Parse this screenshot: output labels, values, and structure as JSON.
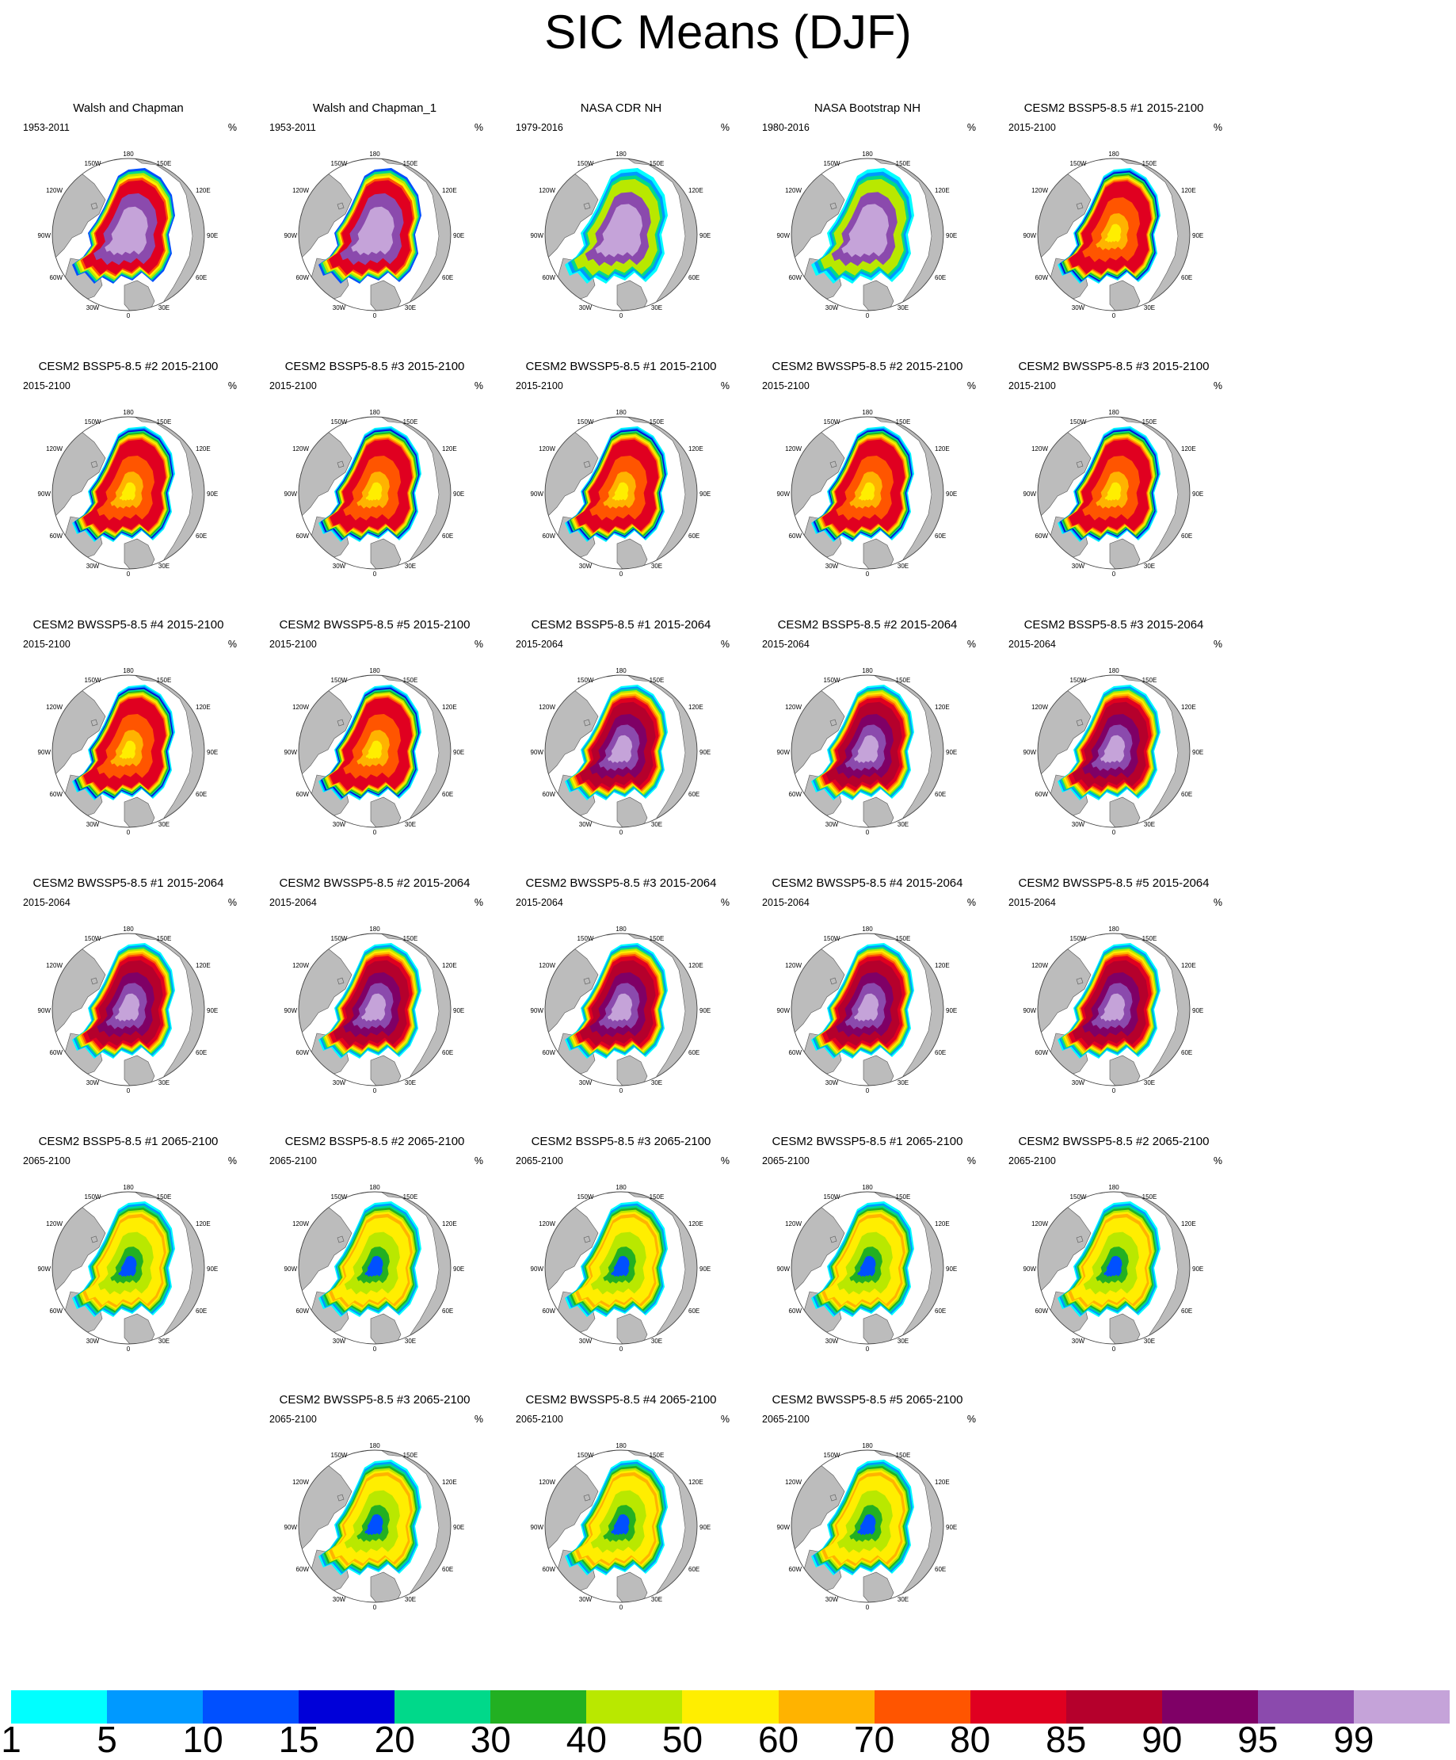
{
  "title": "SIC Means (DJF)",
  "unit_label": "%",
  "longitude_labels": [
    "180",
    "150W",
    "150E",
    "120W",
    "120E",
    "90W",
    "90E",
    "60W",
    "60E",
    "30W",
    "30E",
    "0"
  ],
  "colorbar": {
    "labels": [
      "1",
      "5",
      "10",
      "15",
      "20",
      "30",
      "40",
      "50",
      "60",
      "70",
      "80",
      "85",
      "90",
      "95",
      "99"
    ],
    "colors": [
      "#00ffff",
      "#0099ff",
      "#0050ff",
      "#0000d9",
      "#00d98a",
      "#22b022",
      "#b9e800",
      "#ffee00",
      "#ffb300",
      "#ff5500",
      "#e00020",
      "#b5002c",
      "#7f0066",
      "#8b4aad",
      "#c5a3d9"
    ]
  },
  "colors": {
    "land": "#bcbcbc",
    "ocean": "#ffffff",
    "coastline": "#555555"
  },
  "panels": [
    {
      "title": "Walsh and Chapman",
      "period": "1953-2011",
      "scheme": "obs_wc"
    },
    {
      "title": "Walsh and Chapman_1",
      "period": "1953-2011",
      "scheme": "obs_wc"
    },
    {
      "title": "NASA CDR NH",
      "period": "1979-2016",
      "scheme": "obs_nasa"
    },
    {
      "title": "NASA Bootstrap NH",
      "period": "1980-2016",
      "scheme": "obs_nasa"
    },
    {
      "title": "CESM2 BSSP5-8.5 #1 2015-2100",
      "period": "2015-2100",
      "scheme": "full"
    },
    {
      "title": "CESM2 BSSP5-8.5 #2 2015-2100",
      "period": "2015-2100",
      "scheme": "full"
    },
    {
      "title": "CESM2 BSSP5-8.5 #3 2015-2100",
      "period": "2015-2100",
      "scheme": "full"
    },
    {
      "title": "CESM2 BWSSP5-8.5 #1 2015-2100",
      "period": "2015-2100",
      "scheme": "full"
    },
    {
      "title": "CESM2 BWSSP5-8.5 #2 2015-2100",
      "period": "2015-2100",
      "scheme": "full"
    },
    {
      "title": "CESM2 BWSSP5-8.5 #3 2015-2100",
      "period": "2015-2100",
      "scheme": "full"
    },
    {
      "title": "CESM2 BWSSP5-8.5 #4 2015-2100",
      "period": "2015-2100",
      "scheme": "full"
    },
    {
      "title": "CESM2 BWSSP5-8.5 #5 2015-2100",
      "period": "2015-2100",
      "scheme": "full"
    },
    {
      "title": "CESM2 BSSP5-8.5 #1 2015-2064",
      "period": "2015-2064",
      "scheme": "early"
    },
    {
      "title": "CESM2 BSSP5-8.5 #2 2015-2064",
      "period": "2015-2064",
      "scheme": "early"
    },
    {
      "title": "CESM2 BSSP5-8.5 #3 2015-2064",
      "period": "2015-2064",
      "scheme": "early"
    },
    {
      "title": "CESM2 BWSSP5-8.5 #1 2015-2064",
      "period": "2015-2064",
      "scheme": "early"
    },
    {
      "title": "CESM2 BWSSP5-8.5 #2 2015-2064",
      "period": "2015-2064",
      "scheme": "early"
    },
    {
      "title": "CESM2 BWSSP5-8.5 #3 2015-2064",
      "period": "2015-2064",
      "scheme": "early"
    },
    {
      "title": "CESM2 BWSSP5-8.5 #4 2015-2064",
      "period": "2015-2064",
      "scheme": "early"
    },
    {
      "title": "CESM2 BWSSP5-8.5 #5 2015-2064",
      "period": "2015-2064",
      "scheme": "early"
    },
    {
      "title": "CESM2 BSSP5-8.5 #1 2065-2100",
      "period": "2065-2100",
      "scheme": "late"
    },
    {
      "title": "CESM2 BSSP5-8.5 #2 2065-2100",
      "period": "2065-2100",
      "scheme": "late"
    },
    {
      "title": "CESM2 BSSP5-8.5 #3 2065-2100",
      "period": "2065-2100",
      "scheme": "late"
    },
    {
      "title": "CESM2 BWSSP5-8.5 #1 2065-2100",
      "period": "2065-2100",
      "scheme": "late"
    },
    {
      "title": "CESM2 BWSSP5-8.5 #2 2065-2100",
      "period": "2065-2100",
      "scheme": "late"
    },
    {
      "title": "CESM2 BWSSP5-8.5 #3 2065-2100",
      "period": "2065-2100",
      "scheme": "late"
    },
    {
      "title": "CESM2 BWSSP5-8.5 #4 2065-2100",
      "period": "2065-2100",
      "scheme": "late"
    },
    {
      "title": "CESM2 BWSSP5-8.5 #5 2065-2100",
      "period": "2065-2100",
      "scheme": "late"
    }
  ]
}
